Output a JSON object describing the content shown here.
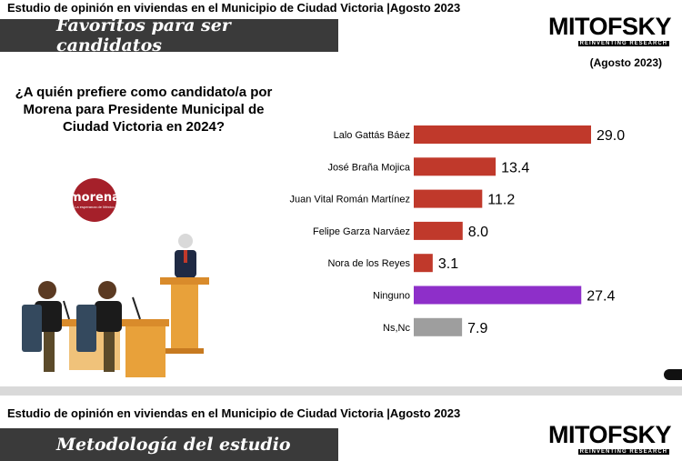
{
  "slide1": {
    "header": "Estudio de opinión en viviendas en el Municipio de Ciudad Victoria |Agosto 2023",
    "banner_title": "Favoritos para ser candidatos",
    "brand_name": "MITOFSKY",
    "brand_tagline": "REINVENTING RESEARCH",
    "brand_date": "(Agosto 2023)",
    "question": "¿A quién prefiere como candidato/a por Morena para Presidente Municipal de Ciudad Victoria en 2024?",
    "party_logo_text": "morena",
    "party_logo_tagline": "La esperanza de México"
  },
  "slide2": {
    "header": "Estudio de opinión en viviendas en el Municipio de Ciudad Victoria |Agosto 2023",
    "banner_title": "Metodología del estudio",
    "brand_name": "MITOFSKY",
    "brand_tagline": "REINVENTING RESEARCH"
  },
  "colors": {
    "candidate_bar": "#c0392b",
    "ninguno_bar": "#8e2fc9",
    "nsnc_bar": "#9e9e9e",
    "banner": "#3a3a3a"
  },
  "chart_data": {
    "type": "bar",
    "orientation": "horizontal",
    "categories": [
      "Lalo Gattás Báez",
      "José Braña Mojica",
      "Juan Vital Román Martínez",
      "Felipe Garza Narváez",
      "Nora de los Reyes",
      "Ninguno",
      "Ns,Nc"
    ],
    "values": [
      29.0,
      13.4,
      11.2,
      8.0,
      3.1,
      27.4,
      7.9
    ],
    "value_labels": [
      "29.0",
      "13.4",
      "11.2",
      "8.0",
      "3.1",
      "27.4",
      "7.9"
    ],
    "bar_colors": [
      "#c0392b",
      "#c0392b",
      "#c0392b",
      "#c0392b",
      "#c0392b",
      "#8e2fc9",
      "#9e9e9e"
    ],
    "xlim": [
      0,
      29
    ],
    "grid": false,
    "title": "",
    "xlabel": "",
    "ylabel": ""
  }
}
